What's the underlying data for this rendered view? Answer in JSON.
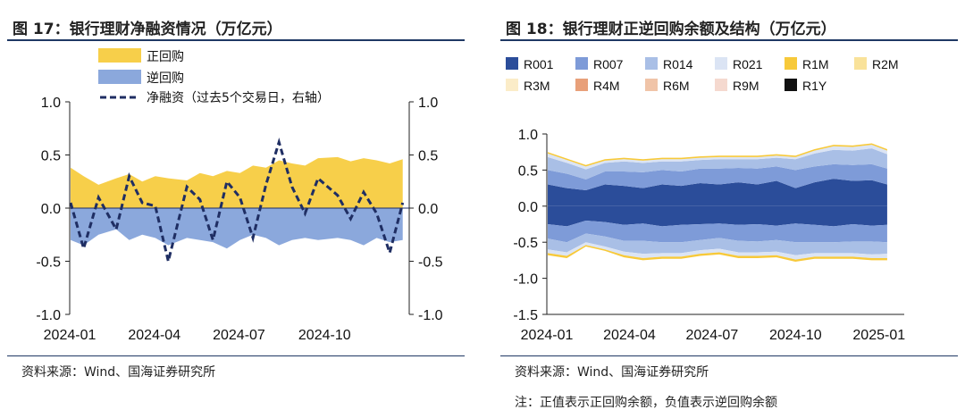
{
  "chart_data": [
    {
      "type": "area",
      "title": "图 17：银行理财净融资情况（万亿元）",
      "source": "资料来源：Wind、国海证券研究所",
      "x_ticks": [
        "2024-01",
        "2024-04",
        "2024-07",
        "2024-10"
      ],
      "ylim": [
        -1.0,
        1.0
      ],
      "y2lim": [
        -1.0,
        1.0
      ],
      "y_ticks": [
        "1.0",
        "0.5",
        "0.0",
        "-0.5",
        "-1.0"
      ],
      "y2_ticks": [
        "1.0",
        "0.5",
        "0.0",
        "-0.5",
        "-1.0"
      ],
      "legend": [
        "正回购",
        "逆回购",
        "净融资（过去5个交易日，右轴）"
      ],
      "colors": {
        "positive": "#f7cf4a",
        "negative": "#8ba8dc",
        "net": "#1f2e63"
      },
      "x_dates": [
        "2024-01-02",
        "2024-01-16",
        "2024-02-01",
        "2024-02-20",
        "2024-03-05",
        "2024-03-19",
        "2024-04-02",
        "2024-04-16",
        "2024-05-06",
        "2024-05-20",
        "2024-06-03",
        "2024-06-18",
        "2024-07-02",
        "2024-07-16",
        "2024-07-30",
        "2024-08-13",
        "2024-08-27",
        "2024-09-10",
        "2024-09-24",
        "2024-10-15",
        "2024-10-29",
        "2024-11-12",
        "2024-11-26",
        "2024-12-10",
        "2024-12-24"
      ],
      "series": [
        {
          "name": "正回购",
          "values": [
            0.38,
            0.3,
            0.22,
            0.28,
            0.32,
            0.25,
            0.3,
            0.28,
            0.26,
            0.33,
            0.3,
            0.35,
            0.33,
            0.4,
            0.38,
            0.45,
            0.42,
            0.4,
            0.47,
            0.48,
            0.44,
            0.47,
            0.45,
            0.42,
            0.46
          ]
        },
        {
          "name": "逆回购",
          "values": [
            -0.3,
            -0.35,
            -0.25,
            -0.2,
            -0.3,
            -0.25,
            -0.28,
            -0.35,
            -0.28,
            -0.3,
            -0.32,
            -0.38,
            -0.3,
            -0.25,
            -0.28,
            -0.35,
            -0.3,
            -0.28,
            -0.3,
            -0.28,
            -0.3,
            -0.35,
            -0.28,
            -0.32,
            -0.3
          ]
        },
        {
          "name": "净融资（过去5个交易日，右轴）",
          "values": [
            0.05,
            -0.38,
            0.1,
            -0.2,
            0.3,
            0.05,
            0.02,
            -0.5,
            0.2,
            0.08,
            -0.3,
            0.25,
            0.1,
            -0.28,
            0.22,
            0.62,
            0.2,
            -0.05,
            0.28,
            0.12,
            -0.1,
            0.15,
            -0.05,
            -0.42,
            0.05
          ]
        }
      ]
    },
    {
      "type": "area",
      "title": "图 18：银行理财正逆回购余额及结构（万亿元）",
      "source": "资料来源：Wind、国海证券研究所",
      "note": "注：正值表示正回购余额，负值表示逆回购余额",
      "x_ticks": [
        "2024-01",
        "2024-04",
        "2024-07",
        "2024-10",
        "2025-01"
      ],
      "ylim": [
        -1.5,
        1.0
      ],
      "y_ticks": [
        "1.0",
        "0.5",
        "0.0",
        "-0.5",
        "-1.0",
        "-1.5"
      ],
      "legend": [
        "R001",
        "R007",
        "R014",
        "R021",
        "R1M",
        "R2M",
        "R3M",
        "R4M",
        "R6M",
        "R9M",
        "R1Y"
      ],
      "colors": [
        "#2b4d9a",
        "#7e9bd8",
        "#a9bfe6",
        "#dbe4f4",
        "#f7c93a",
        "#f9e29a",
        "#fbecc8",
        "#e8a07a",
        "#f0c4a8",
        "#f5d9cf",
        "#111111"
      ],
      "x_dates": [
        "2024-01-02",
        "2024-01-23",
        "2024-02-13",
        "2024-03-05",
        "2024-03-26",
        "2024-04-16",
        "2024-05-07",
        "2024-05-28",
        "2024-06-18",
        "2024-07-09",
        "2024-07-30",
        "2024-08-20",
        "2024-09-10",
        "2024-10-01",
        "2024-10-22",
        "2024-11-12",
        "2024-12-03",
        "2024-12-24",
        "2025-01-10"
      ],
      "positive_series": [
        {
          "name": "R001",
          "values": [
            0.3,
            0.25,
            0.22,
            0.3,
            0.28,
            0.25,
            0.3,
            0.28,
            0.32,
            0.3,
            0.33,
            0.3,
            0.35,
            0.25,
            0.33,
            0.38,
            0.35,
            0.36,
            0.3
          ]
        },
        {
          "name": "R007",
          "values": [
            0.2,
            0.2,
            0.15,
            0.18,
            0.2,
            0.22,
            0.2,
            0.2,
            0.2,
            0.22,
            0.2,
            0.22,
            0.2,
            0.25,
            0.22,
            0.2,
            0.22,
            0.22,
            0.22
          ]
        },
        {
          "name": "R014",
          "values": [
            0.18,
            0.15,
            0.14,
            0.12,
            0.14,
            0.13,
            0.12,
            0.14,
            0.12,
            0.13,
            0.12,
            0.13,
            0.12,
            0.15,
            0.18,
            0.2,
            0.2,
            0.22,
            0.2
          ]
        },
        {
          "name": "R021",
          "values": [
            0.05,
            0.04,
            0.04,
            0.03,
            0.03,
            0.03,
            0.03,
            0.03,
            0.03,
            0.03,
            0.03,
            0.03,
            0.03,
            0.03,
            0.04,
            0.05,
            0.05,
            0.05,
            0.05
          ]
        },
        {
          "name": "R1M",
          "values": [
            0.02,
            0.02,
            0.02,
            0.02,
            0.02,
            0.02,
            0.02,
            0.02,
            0.02,
            0.02,
            0.02,
            0.02,
            0.02,
            0.02,
            0.02,
            0.02,
            0.02,
            0.02,
            0.02
          ]
        }
      ],
      "negative_series": [
        {
          "name": "R001",
          "values": [
            -0.25,
            -0.28,
            -0.2,
            -0.22,
            -0.26,
            -0.24,
            -0.28,
            -0.26,
            -0.25,
            -0.24,
            -0.26,
            -0.25,
            -0.27,
            -0.24,
            -0.26,
            -0.28,
            -0.25,
            -0.27,
            -0.26
          ]
        },
        {
          "name": "R007",
          "values": [
            -0.2,
            -0.22,
            -0.18,
            -0.2,
            -0.22,
            -0.24,
            -0.22,
            -0.24,
            -0.22,
            -0.2,
            -0.22,
            -0.24,
            -0.2,
            -0.26,
            -0.24,
            -0.22,
            -0.24,
            -0.22,
            -0.24
          ]
        },
        {
          "name": "R014",
          "values": [
            -0.15,
            -0.14,
            -0.12,
            -0.14,
            -0.15,
            -0.18,
            -0.15,
            -0.15,
            -0.14,
            -0.15,
            -0.16,
            -0.15,
            -0.16,
            -0.18,
            -0.15,
            -0.15,
            -0.16,
            -0.18,
            -0.16
          ]
        },
        {
          "name": "R021",
          "values": [
            -0.05,
            -0.05,
            -0.04,
            -0.04,
            -0.05,
            -0.06,
            -0.05,
            -0.05,
            -0.05,
            -0.05,
            -0.05,
            -0.05,
            -0.05,
            -0.06,
            -0.05,
            -0.05,
            -0.05,
            -0.05,
            -0.06
          ]
        },
        {
          "name": "R1M",
          "values": [
            -0.03,
            -0.03,
            -0.02,
            -0.02,
            -0.03,
            -0.03,
            -0.03,
            -0.03,
            -0.03,
            -0.03,
            -0.03,
            -0.03,
            -0.03,
            -0.03,
            -0.03,
            -0.03,
            -0.03,
            -0.03,
            -0.03
          ]
        }
      ]
    }
  ]
}
